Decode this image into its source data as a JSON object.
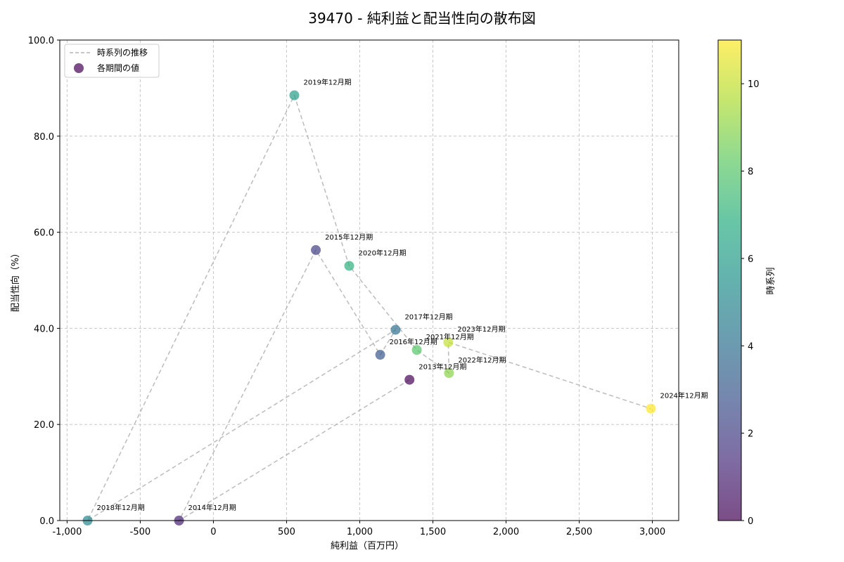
{
  "chart_data": {
    "type": "scatter",
    "title": "39470 - 純利益と配当性向の散布図",
    "xlabel": "純利益（百万円）",
    "ylabel": "配当性向（%）",
    "colorbar_label": "時系列",
    "xlim": [
      -1050,
      3180
    ],
    "ylim": [
      0,
      100
    ],
    "xticks": [
      -1000,
      -500,
      0,
      500,
      1000,
      1500,
      2000,
      2500,
      3000
    ],
    "xtick_labels": [
      "-1,000",
      "-500",
      "0",
      "500",
      "1,000",
      "1,500",
      "2,000",
      "2,500",
      "3,000"
    ],
    "yticks": [
      0,
      20,
      40,
      60,
      80,
      100
    ],
    "ytick_labels": [
      "0.0",
      "20.0",
      "40.0",
      "60.0",
      "80.0",
      "100.0"
    ],
    "cticks": [
      0,
      2,
      4,
      6,
      8,
      10
    ],
    "ctick_labels": [
      "0",
      "2",
      "4",
      "6",
      "8",
      "10"
    ],
    "clim": [
      0,
      11
    ],
    "grid": true,
    "legend_position": "top-left",
    "legend": [
      {
        "label": "時系列の推移",
        "kind": "line"
      },
      {
        "label": "各期間の値",
        "kind": "marker"
      }
    ],
    "points": [
      {
        "label": "2013年12月期",
        "x": 1340,
        "y": 29.3,
        "t": 0
      },
      {
        "label": "2014年12月期",
        "x": -235,
        "y": 0.0,
        "t": 1
      },
      {
        "label": "2015年12月期",
        "x": 700,
        "y": 56.3,
        "t": 2
      },
      {
        "label": "2016年12月期",
        "x": 1140,
        "y": 34.5,
        "t": 3
      },
      {
        "label": "2017年12月期",
        "x": 1245,
        "y": 39.7,
        "t": 4
      },
      {
        "label": "2018年12月期",
        "x": -860,
        "y": 0.0,
        "t": 5
      },
      {
        "label": "2019年12月期",
        "x": 553,
        "y": 88.5,
        "t": 6
      },
      {
        "label": "2020年12月期",
        "x": 928,
        "y": 53.0,
        "t": 7
      },
      {
        "label": "2021年12月期",
        "x": 1390,
        "y": 35.5,
        "t": 8
      },
      {
        "label": "2022年12月期",
        "x": 1610,
        "y": 30.7,
        "t": 9
      },
      {
        "label": "2023年12月期",
        "x": 1605,
        "y": 37.1,
        "t": 10
      },
      {
        "label": "2024年12月期",
        "x": 2990,
        "y": 23.3,
        "t": 11
      }
    ]
  }
}
